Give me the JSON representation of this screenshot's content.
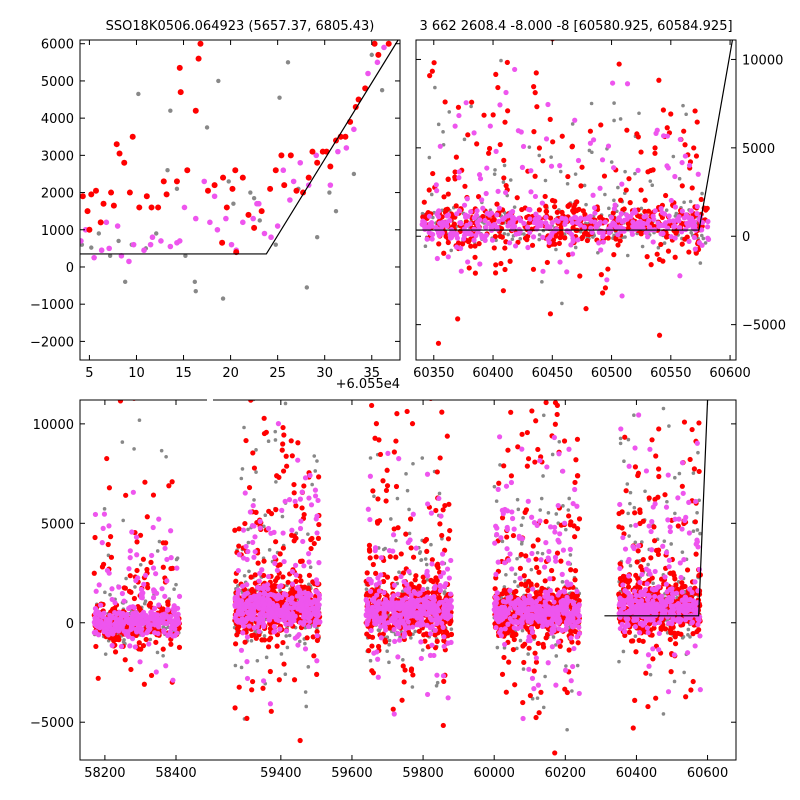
{
  "colors": {
    "grey": "#888888",
    "red": "#ff0000",
    "magenta": "#ee55ee",
    "line": "#000000"
  },
  "chart_data": [
    {
      "id": "top-left",
      "type": "scatter",
      "title": "SSO18K0506.064923 (5657.37, 6805.43)",
      "xlim": [
        4,
        38
      ],
      "ylim": [
        -2500,
        6100
      ],
      "xticks": [
        5,
        10,
        15,
        20,
        25,
        30,
        35
      ],
      "yticks": [
        -2000,
        -1000,
        0,
        1000,
        2000,
        3000,
        4000,
        5000,
        6000
      ],
      "xticklabels": [
        "5",
        "10",
        "15",
        "20",
        "25",
        "30",
        "35"
      ],
      "yticklabels": [
        "−2000",
        "−1000",
        "0",
        "1000",
        "2000",
        "3000",
        "4000",
        "5000",
        "6000"
      ],
      "x_offset_label": "+6.055e4",
      "ytick_side": "left",
      "line": [
        [
          4,
          350
        ],
        [
          23.8,
          350
        ],
        [
          37.8,
          6100
        ]
      ],
      "series": [
        {
          "color": "grey",
          "size": 2.2,
          "points": [
            [
              4.2,
              600
            ],
            [
              5.2,
              520
            ],
            [
              6.0,
              900
            ],
            [
              7.2,
              300
            ],
            [
              8.1,
              700
            ],
            [
              8.8,
              -400
            ],
            [
              9.5,
              600
            ],
            [
              10.2,
              4650
            ],
            [
              11.0,
              500
            ],
            [
              12.1,
              900
            ],
            [
              13.3,
              2600
            ],
            [
              13.6,
              4200
            ],
            [
              14.3,
              2100
            ],
            [
              15.2,
              300
            ],
            [
              16.2,
              -400
            ],
            [
              16.3,
              -650
            ],
            [
              17.5,
              3750
            ],
            [
              18.7,
              5000
            ],
            [
              19.2,
              -850
            ],
            [
              20.3,
              1700
            ],
            [
              22.1,
              2000
            ],
            [
              23.1,
              1250
            ],
            [
              24.8,
              600
            ],
            [
              25.2,
              4550
            ],
            [
              26.1,
              5500
            ],
            [
              28.1,
              -550
            ],
            [
              29.2,
              800
            ],
            [
              30.5,
              2000
            ],
            [
              31.2,
              1500
            ],
            [
              33.1,
              2500
            ],
            [
              35.0,
              5700
            ],
            [
              36.1,
              4750
            ],
            [
              22.5,
              1850
            ],
            [
              27.2,
              2100
            ],
            [
              19.8,
              2300
            ]
          ]
        },
        {
          "color": "magenta",
          "size": 2.8,
          "points": [
            [
              4.1,
              700
            ],
            [
              4.6,
              1000
            ],
            [
              5.5,
              250
            ],
            [
              6.3,
              450
            ],
            [
              7.1,
              500
            ],
            [
              8.0,
              1100
            ],
            [
              8.4,
              300
            ],
            [
              9.2,
              150
            ],
            [
              9.7,
              600
            ],
            [
              10.8,
              450
            ],
            [
              11.5,
              600
            ],
            [
              12.6,
              700
            ],
            [
              13.6,
              550
            ],
            [
              14.3,
              650
            ],
            [
              15.1,
              1600
            ],
            [
              16.3,
              1300
            ],
            [
              17.2,
              2300
            ],
            [
              17.8,
              1200
            ],
            [
              18.3,
              1900
            ],
            [
              18.6,
              1000
            ],
            [
              19.5,
              1300
            ],
            [
              20.1,
              600
            ],
            [
              20.6,
              450
            ],
            [
              21.3,
              1200
            ],
            [
              22.4,
              1300
            ],
            [
              23.0,
              1700
            ],
            [
              23.6,
              900
            ],
            [
              24.3,
              800
            ],
            [
              25.0,
              1100
            ],
            [
              25.6,
              2600
            ],
            [
              26.3,
              1800
            ],
            [
              26.7,
              2300
            ],
            [
              28.3,
              2200
            ],
            [
              29.1,
              3000
            ],
            [
              30.6,
              2200
            ],
            [
              31.4,
              3100
            ],
            [
              32.3,
              3200
            ],
            [
              33.1,
              3700
            ],
            [
              34.6,
              5200
            ],
            [
              35.6,
              5500
            ],
            [
              36.3,
              5900
            ],
            [
              6.8,
              1200
            ],
            [
              11.7,
              800
            ],
            [
              14.6,
              700
            ],
            [
              22.8,
              1700
            ],
            [
              27.4,
              2800
            ]
          ]
        },
        {
          "color": "red",
          "size": 3.0,
          "points": [
            [
              4.3,
              1900
            ],
            [
              4.8,
              1500
            ],
            [
              5.2,
              1950
            ],
            [
              5.7,
              2050
            ],
            [
              6.2,
              1200
            ],
            [
              6.5,
              1700
            ],
            [
              7.3,
              2000
            ],
            [
              7.6,
              1650
            ],
            [
              7.9,
              3300
            ],
            [
              8.2,
              3050
            ],
            [
              8.7,
              2800
            ],
            [
              9.3,
              2000
            ],
            [
              9.6,
              3500
            ],
            [
              10.3,
              1600
            ],
            [
              11.1,
              1900
            ],
            [
              11.6,
              1600
            ],
            [
              12.3,
              1600
            ],
            [
              12.9,
              2300
            ],
            [
              13.2,
              1950
            ],
            [
              14.3,
              2300
            ],
            [
              14.6,
              5350
            ],
            [
              14.7,
              4700
            ],
            [
              15.4,
              2600
            ],
            [
              16.3,
              4200
            ],
            [
              16.6,
              5600
            ],
            [
              16.8,
              6000
            ],
            [
              17.6,
              2050
            ],
            [
              18.3,
              2200
            ],
            [
              19.2,
              2400
            ],
            [
              19.6,
              1600
            ],
            [
              20.2,
              2100
            ],
            [
              20.5,
              2600
            ],
            [
              21.3,
              2400
            ],
            [
              21.9,
              1400
            ],
            [
              22.5,
              1050
            ],
            [
              23.3,
              1500
            ],
            [
              24.2,
              2100
            ],
            [
              24.8,
              2600
            ],
            [
              25.4,
              3000
            ],
            [
              25.7,
              2200
            ],
            [
              26.4,
              3000
            ],
            [
              27.0,
              2050
            ],
            [
              27.7,
              2000
            ],
            [
              28.3,
              2400
            ],
            [
              28.7,
              3100
            ],
            [
              29.2,
              2800
            ],
            [
              29.8,
              3100
            ],
            [
              30.2,
              3100
            ],
            [
              30.6,
              2700
            ],
            [
              31.2,
              3400
            ],
            [
              31.7,
              3500
            ],
            [
              32.2,
              3500
            ],
            [
              32.7,
              3900
            ],
            [
              33.3,
              4300
            ],
            [
              33.6,
              4500
            ],
            [
              34.3,
              4800
            ],
            [
              35.3,
              6000
            ],
            [
              35.7,
              5700
            ],
            [
              20.6,
              400
            ],
            [
              19.1,
              650
            ],
            [
              5.0,
              1000
            ],
            [
              36.8,
              6000
            ]
          ]
        }
      ]
    },
    {
      "id": "top-right",
      "type": "scatter",
      "title": "3 662 2608.4 -8.000 -8 [60580.925, 60584.925]",
      "xlim": [
        60335,
        60605
      ],
      "ylim": [
        -7000,
        11100
      ],
      "xticks": [
        60350,
        60400,
        60450,
        60500,
        60550,
        60600
      ],
      "yticks": [
        -5000,
        0,
        5000,
        10000
      ],
      "xticklabels": [
        "60350",
        "60400",
        "60450",
        "60500",
        "60550",
        "60600"
      ],
      "yticklabels": [
        "−5000",
        "0",
        "5000",
        "10000"
      ],
      "ytick_side": "right",
      "line": [
        [
          60335,
          350
        ],
        [
          60573.8,
          350
        ],
        [
          60602,
          11100
        ]
      ],
      "clusters": [
        {
          "xrange": [
            60340,
            60582
          ],
          "center": 600,
          "spread": 1300,
          "tail": 4500,
          "counts": [
            260,
            520,
            420
          ]
        }
      ]
    },
    {
      "id": "bottom",
      "type": "scatter",
      "title": "",
      "xlim": [
        58130,
        60680
      ],
      "ylim": [
        -6900,
        11200
      ],
      "xticks": [
        58200,
        58400,
        59400,
        59600,
        59800,
        60000,
        60200,
        60400,
        60600
      ],
      "yticks": [
        -5000,
        0,
        5000,
        10000
      ],
      "xticklabels": [
        "58200",
        "58400",
        "59400",
        "59600",
        "59800",
        "60000",
        "60200",
        "60400",
        "60600"
      ],
      "yticklabels": [
        "−5000",
        "0",
        "5000",
        "10000"
      ],
      "ytick_side": "left",
      "break": [
        58440,
        59260
      ],
      "break_compress": 0.14,
      "line": [
        [
          60310,
          350
        ],
        [
          60575,
          350
        ],
        [
          60600,
          11200
        ]
      ],
      "clusters": [
        {
          "xrange": [
            58170,
            58410
          ],
          "center": 0,
          "spread": 900,
          "tail": 3500,
          "counts": [
            210,
            300,
            320
          ]
        },
        {
          "xrange": [
            59270,
            59510
          ],
          "center": 700,
          "spread": 1400,
          "tail": 5000,
          "counts": [
            260,
            500,
            380
          ]
        },
        {
          "xrange": [
            59640,
            59880
          ],
          "center": 600,
          "spread": 1400,
          "tail": 4500,
          "counts": [
            260,
            500,
            380
          ]
        },
        {
          "xrange": [
            60000,
            60240
          ],
          "center": 500,
          "spread": 1300,
          "tail": 5200,
          "counts": [
            260,
            520,
            380
          ]
        },
        {
          "xrange": [
            60350,
            60580
          ],
          "center": 800,
          "spread": 1500,
          "tail": 5000,
          "counts": [
            230,
            470,
            330
          ]
        }
      ]
    }
  ]
}
